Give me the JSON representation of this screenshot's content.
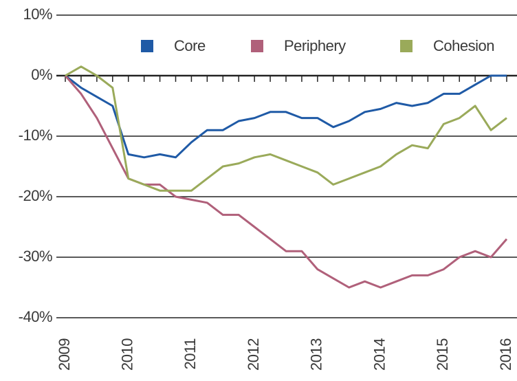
{
  "chart_data": {
    "type": "line",
    "x": [
      2009,
      2009.25,
      2009.5,
      2009.75,
      2010,
      2010.25,
      2010.5,
      2010.75,
      2011,
      2011.25,
      2011.5,
      2011.75,
      2012,
      2012.25,
      2012.5,
      2012.75,
      2013,
      2013.25,
      2013.5,
      2013.75,
      2014,
      2014.25,
      2014.5,
      2014.75,
      2015,
      2015.25,
      2015.5,
      2015.75,
      2016
    ],
    "series": [
      {
        "name": "Core",
        "color": "#1f5aa6",
        "values": [
          0,
          -2,
          -3.5,
          -5,
          -13,
          -13.5,
          -13,
          -13.5,
          -11,
          -9,
          -9,
          -7.5,
          -7,
          -6,
          -6,
          -7,
          -7,
          -8.5,
          -7.5,
          -6,
          -5.5,
          -4.5,
          -5,
          -4.5,
          -3,
          -3,
          -1.5,
          0,
          0
        ]
      },
      {
        "name": "Periphery",
        "color": "#b0607a",
        "values": [
          0,
          -3,
          -7,
          -12,
          -17,
          -18,
          -18,
          -20,
          -20.5,
          -21,
          -23,
          -23,
          -25,
          -27,
          -29,
          -29,
          -32,
          -33.5,
          -35,
          -34,
          -35,
          -34,
          -33,
          -33,
          -32,
          -30,
          -29,
          -30,
          -27
        ]
      },
      {
        "name": "Cohesion",
        "color": "#9aaa5a",
        "values": [
          0,
          1.5,
          0,
          -2,
          -17,
          -18,
          -19,
          -19,
          -19,
          -17,
          -15,
          -14.5,
          -13.5,
          -13,
          -14,
          -15,
          -16,
          -18,
          -17,
          -16,
          -15,
          -13,
          -11.5,
          -12,
          -8,
          -7,
          -5,
          -9,
          -7
        ]
      }
    ],
    "xlim": [
      2009,
      2016
    ],
    "xticks": [
      2009,
      2010,
      2011,
      2012,
      2013,
      2014,
      2015,
      2016
    ],
    "ylim": [
      -40,
      10
    ],
    "yticks": [
      {
        "value": 10,
        "label": "10%"
      },
      {
        "value": 0,
        "label": "0%"
      },
      {
        "value": -10,
        "label": "-10%"
      },
      {
        "value": -20,
        "label": "-20%"
      },
      {
        "value": -30,
        "label": "-30%"
      },
      {
        "value": -40,
        "label": "-40%"
      }
    ],
    "grid": true,
    "legend": "top"
  }
}
